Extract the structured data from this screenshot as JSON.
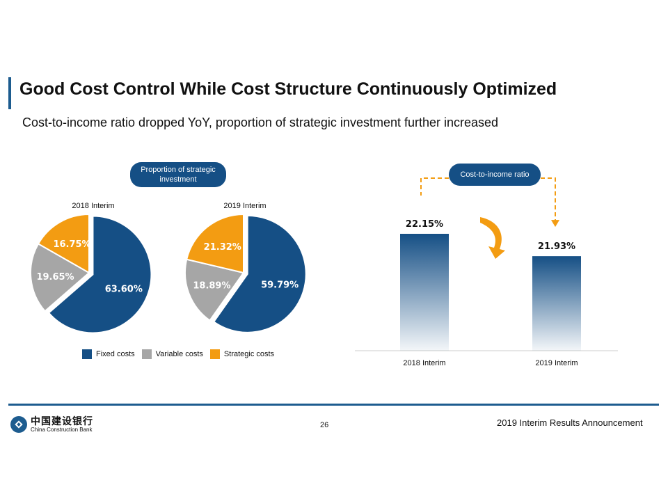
{
  "header": {
    "title": "Good Cost Control While Cost Structure Continuously Optimized",
    "subtitle": "Cost-to-income ratio dropped YoY, proportion of strategic investment further increased"
  },
  "colors": {
    "fixed": "#154f85",
    "variable": "#a6a6a6",
    "strategic": "#f39c12",
    "accent": "#1d5c8f",
    "arrow": "#f39c12"
  },
  "pies": {
    "pill_label": "Proportion of strategic investment",
    "legend": [
      "Fixed costs",
      "Variable costs",
      "Strategic costs"
    ]
  },
  "bars": {
    "pill_label": "Cost-to-income ratio"
  },
  "chart_data": [
    {
      "type": "pie",
      "title": "2018 Interim",
      "categories": [
        "Fixed costs",
        "Variable costs",
        "Strategic costs"
      ],
      "values": [
        63.6,
        19.65,
        16.75
      ],
      "labels": [
        "63.60%",
        "19.65%",
        "16.75%"
      ]
    },
    {
      "type": "pie",
      "title": "2019 Interim",
      "categories": [
        "Fixed costs",
        "Variable costs",
        "Strategic costs"
      ],
      "values": [
        59.79,
        18.89,
        21.32
      ],
      "labels": [
        "59.79%",
        "18.89%",
        "21.32%"
      ]
    },
    {
      "type": "bar",
      "title": "Cost-to-income ratio",
      "categories": [
        "2018 Interim",
        "2019 Interim"
      ],
      "values": [
        22.15,
        21.93
      ],
      "labels": [
        "22.15%",
        "21.93%"
      ]
    }
  ],
  "footer": {
    "page_number": "26",
    "report_title": "2019 Interim Results Announcement",
    "logo_cn": "中国建设银行",
    "logo_en": "China Construction Bank"
  }
}
